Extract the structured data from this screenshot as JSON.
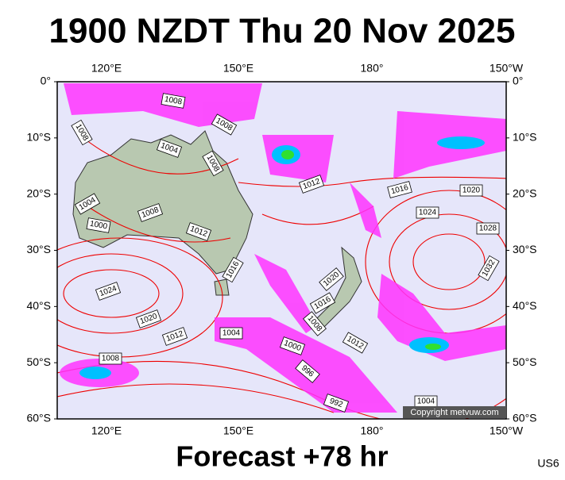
{
  "header": {
    "title": "1900 NZDT Thu 20 Nov 2025"
  },
  "map": {
    "lat_labels": [
      "0°",
      "10°S",
      "20°S",
      "30°S",
      "40°S",
      "50°S",
      "60°S"
    ],
    "lon_labels": [
      "120°E",
      "150°E",
      "180°",
      "150°W"
    ],
    "isobar_labels": [
      "1008",
      "1008",
      "1008",
      "1004",
      "1008",
      "1012",
      "1016",
      "1020",
      "1004",
      "1008",
      "1000",
      "1024",
      "1028",
      "1012",
      "1016",
      "1032",
      "1020",
      "1024",
      "1016",
      "1020",
      "1008",
      "1012",
      "1004",
      "1000",
      "1012",
      "1008",
      "996",
      "992",
      "1004"
    ],
    "copyright": "Copyright metvuw.com"
  },
  "footer": {
    "forecast": "Forecast +78 hr",
    "code": "US6"
  }
}
